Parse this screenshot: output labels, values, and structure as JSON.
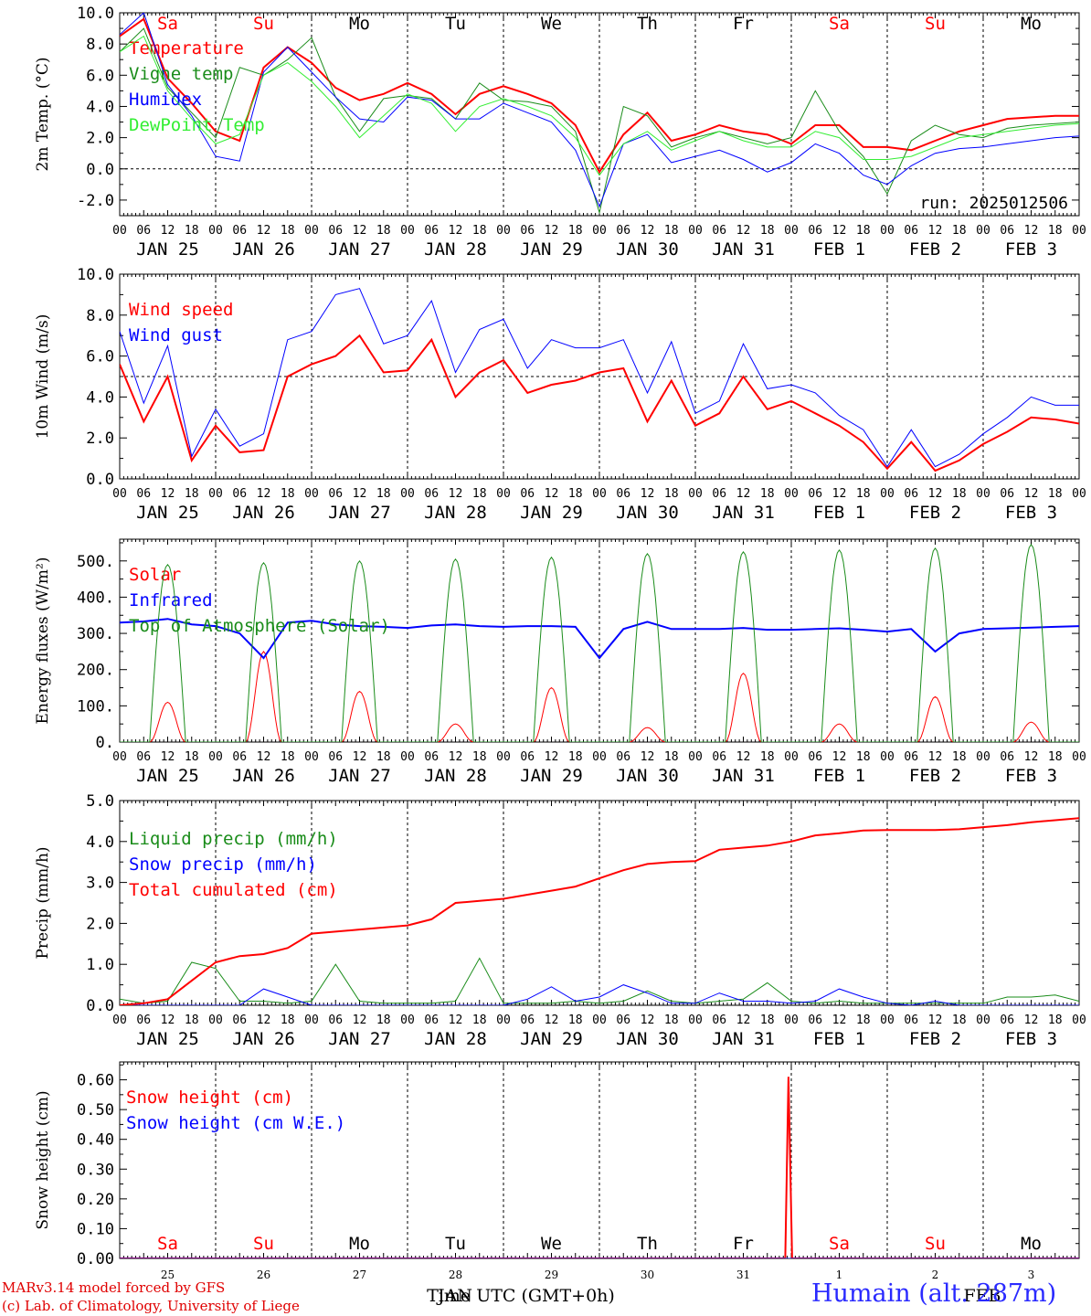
{
  "footer": {
    "model": "MARv3.14 model forced by GFS",
    "lab": "(c) Lab. of Climatology, University of Liege",
    "station": "Humain (alt. 287m)"
  },
  "colors": {
    "red": "#ff0000",
    "green": "#1a8c1a",
    "blue": "#0000ff",
    "lightgreen": "#33ee33",
    "axis": "#000000"
  },
  "chart_data": [
    {
      "type": "line",
      "ylabel": "2m Temp. (°C)",
      "ylim": [
        -3,
        10
      ],
      "yticks": [
        "-2.0",
        "0.0",
        "2.0",
        "4.0",
        "6.0",
        "8.0",
        "10.0"
      ],
      "ytick_values": [
        -2,
        0,
        2,
        4,
        6,
        8,
        10
      ],
      "hline": 0,
      "day_labels": [
        {
          "text": "Sa",
          "red": true
        },
        {
          "text": "Su",
          "red": true
        },
        {
          "text": "Mo",
          "red": false
        },
        {
          "text": "Tu",
          "red": false
        },
        {
          "text": "We",
          "red": false
        },
        {
          "text": "Th",
          "red": false
        },
        {
          "text": "Fr",
          "red": false
        },
        {
          "text": "Sa",
          "red": true
        },
        {
          "text": "Su",
          "red": true
        },
        {
          "text": "Mo",
          "red": false
        }
      ],
      "date_labels": [
        "JAN 25",
        "JAN 26",
        "JAN 27",
        "JAN 28",
        "JAN 29",
        "JAN 30",
        "JAN 31",
        "FEB  1",
        "FEB  2",
        "FEB  3"
      ],
      "hour_labels": [
        "00",
        "06",
        "12",
        "18"
      ],
      "annotation": "run: 2025012506",
      "x_hours": [
        0,
        6,
        12,
        18,
        24,
        30,
        36,
        42,
        48,
        54,
        60,
        66,
        72,
        78,
        84,
        90,
        96,
        102,
        108,
        114,
        120,
        126,
        132,
        138,
        144,
        150,
        156,
        162,
        168,
        174,
        180,
        186,
        192,
        198,
        204,
        210,
        216,
        222,
        228,
        234,
        240
      ],
      "series": [
        {
          "name": "Temperature",
          "color": "#ff0000",
          "width": 2,
          "values": [
            8.5,
            9.6,
            5.8,
            4.2,
            2.4,
            1.8,
            6.5,
            7.8,
            6.8,
            5.2,
            4.4,
            4.8,
            5.5,
            4.8,
            3.5,
            4.8,
            5.3,
            4.8,
            4.2,
            2.8,
            -0.2,
            2.2,
            3.6,
            1.8,
            2.2,
            2.8,
            2.4,
            2.2,
            1.6,
            2.8,
            2.8,
            1.4,
            1.4,
            1.2,
            1.8,
            2.4,
            2.8,
            3.2,
            3.3,
            3.4,
            3.4
          ]
        },
        {
          "name": "Vigne temp",
          "color": "#1a8c1a",
          "width": 1,
          "values": [
            7.5,
            9.0,
            5.2,
            3.6,
            2.0,
            6.5,
            6.0,
            7.0,
            8.4,
            4.6,
            2.4,
            4.5,
            4.7,
            4.5,
            3.2,
            5.5,
            4.4,
            4.3,
            4.0,
            2.4,
            -2.8,
            4.0,
            3.4,
            1.4,
            2.0,
            2.4,
            2.0,
            1.6,
            2.0,
            5.0,
            2.4,
            0.8,
            -1.6,
            1.8,
            2.8,
            2.2,
            2.0,
            2.6,
            2.8,
            2.9,
            3.0
          ]
        },
        {
          "name": "Humidex",
          "color": "#0000ff",
          "width": 1,
          "values": [
            8.6,
            10.0,
            5.4,
            3.4,
            0.8,
            0.5,
            6.2,
            7.8,
            6.2,
            4.6,
            3.2,
            3.0,
            4.6,
            4.4,
            3.2,
            3.2,
            4.2,
            3.6,
            3.0,
            1.2,
            -2.4,
            1.6,
            2.2,
            0.4,
            0.8,
            1.2,
            0.6,
            -0.2,
            0.4,
            1.6,
            1.0,
            -0.4,
            -1.0,
            0.2,
            1.0,
            1.3,
            1.4,
            1.6,
            1.8,
            2.0,
            2.1
          ]
        },
        {
          "name": "DewPoint Temp",
          "color": "#33ee33",
          "width": 1,
          "values": [
            7.5,
            8.5,
            5.0,
            3.2,
            1.6,
            2.2,
            6.0,
            6.8,
            5.6,
            4.0,
            2.0,
            3.4,
            4.8,
            4.2,
            2.4,
            4.0,
            4.5,
            4.0,
            3.4,
            2.0,
            -0.4,
            1.6,
            2.4,
            1.2,
            1.8,
            2.4,
            1.8,
            1.4,
            1.4,
            2.4,
            2.0,
            0.6,
            0.6,
            0.8,
            1.4,
            2.0,
            2.2,
            2.4,
            2.6,
            2.8,
            2.9
          ]
        }
      ]
    },
    {
      "type": "line",
      "ylabel": "10m Wind (m/s)",
      "ylim": [
        0,
        10
      ],
      "yticks": [
        "0.0",
        "2.0",
        "4.0",
        "6.0",
        "8.0",
        "10.0"
      ],
      "ytick_values": [
        0,
        2,
        4,
        6,
        8,
        10
      ],
      "hline": 5,
      "date_labels": [
        "JAN 25",
        "JAN 26",
        "JAN 27",
        "JAN 28",
        "JAN 29",
        "JAN 30",
        "JAN 31",
        "FEB  1",
        "FEB  2",
        "FEB  3"
      ],
      "hour_labels": [
        "00",
        "06",
        "12",
        "18"
      ],
      "x_hours": [
        0,
        6,
        12,
        18,
        24,
        30,
        36,
        42,
        48,
        54,
        60,
        66,
        72,
        78,
        84,
        90,
        96,
        102,
        108,
        114,
        120,
        126,
        132,
        138,
        144,
        150,
        156,
        162,
        168,
        174,
        180,
        186,
        192,
        198,
        204,
        210,
        216,
        222,
        228,
        234,
        240
      ],
      "series": [
        {
          "name": "Wind speed",
          "color": "#ff0000",
          "width": 2,
          "values": [
            5.6,
            2.8,
            5.0,
            0.9,
            2.6,
            1.3,
            1.4,
            5.0,
            5.6,
            6.0,
            7.0,
            5.2,
            5.3,
            6.8,
            4.0,
            5.2,
            5.8,
            4.2,
            4.6,
            4.8,
            5.2,
            5.4,
            2.8,
            4.8,
            2.6,
            3.2,
            5.0,
            3.4,
            3.8,
            3.2,
            2.6,
            1.8,
            0.5,
            1.8,
            0.4,
            0.9,
            1.7,
            2.3,
            3.0,
            2.9,
            2.7
          ]
        },
        {
          "name": "Wind gust",
          "color": "#0000ff",
          "width": 1,
          "values": [
            7.2,
            3.7,
            6.5,
            1.1,
            3.4,
            1.6,
            2.2,
            6.8,
            7.2,
            9.0,
            9.3,
            6.6,
            7.0,
            8.7,
            5.2,
            7.3,
            7.8,
            5.4,
            6.8,
            6.4,
            6.4,
            6.8,
            4.2,
            6.7,
            3.2,
            3.8,
            6.6,
            4.4,
            4.6,
            4.2,
            3.1,
            2.4,
            0.6,
            2.4,
            0.6,
            1.2,
            2.2,
            3.0,
            4.0,
            3.6,
            3.6
          ]
        }
      ]
    },
    {
      "type": "line",
      "ylabel": "Energy fluxes (W/m²)",
      "ylim": [
        0,
        560
      ],
      "yticks": [
        "0.",
        "100.",
        "200.",
        "300.",
        "400.",
        "500."
      ],
      "ytick_values": [
        0,
        100,
        200,
        300,
        400,
        500
      ],
      "date_labels": [
        "JAN 25",
        "JAN 26",
        "JAN 27",
        "JAN 28",
        "JAN 29",
        "JAN 30",
        "JAN 31",
        "FEB  1",
        "FEB  2",
        "FEB  3"
      ],
      "hour_labels": [
        "00",
        "06",
        "12",
        "18"
      ],
      "series": [
        {
          "name": "Solar",
          "color": "#ff0000",
          "width": 1,
          "peaks": [
            110,
            250,
            140,
            50,
            150,
            40,
            190,
            50,
            125,
            55
          ]
        },
        {
          "name": "Infrared",
          "color": "#0000ff",
          "width": 2,
          "x_hours": [
            0,
            6,
            12,
            18,
            24,
            30,
            36,
            42,
            48,
            54,
            60,
            66,
            72,
            78,
            84,
            90,
            96,
            102,
            108,
            114,
            120,
            126,
            132,
            138,
            144,
            150,
            156,
            162,
            168,
            174,
            180,
            186,
            192,
            198,
            204,
            210,
            216,
            222,
            228,
            234,
            240
          ],
          "values": [
            330,
            333,
            340,
            325,
            320,
            300,
            232,
            330,
            335,
            325,
            320,
            318,
            315,
            322,
            325,
            320,
            318,
            320,
            320,
            318,
            232,
            312,
            332,
            312,
            312,
            312,
            315,
            310,
            310,
            312,
            314,
            310,
            305,
            312,
            250,
            300,
            312,
            314,
            316,
            318,
            320
          ]
        },
        {
          "name": "Top of Atmosphere (Solar)",
          "color": "#1a8c1a",
          "width": 1,
          "peaks": [
            490,
            495,
            500,
            505,
            510,
            520,
            525,
            530,
            535,
            545
          ]
        }
      ]
    },
    {
      "type": "line",
      "ylabel": "Precip (mm/h)",
      "ylim": [
        0,
        5
      ],
      "yticks": [
        "0.0",
        "1.0",
        "2.0",
        "3.0",
        "4.0",
        "5.0"
      ],
      "ytick_values": [
        0,
        1,
        2,
        3,
        4,
        5
      ],
      "date_labels": [
        "JAN 25",
        "JAN 26",
        "JAN 27",
        "JAN 28",
        "JAN 29",
        "JAN 30",
        "JAN 31",
        "FEB  1",
        "FEB  2",
        "FEB  3"
      ],
      "hour_labels": [
        "00",
        "06",
        "12",
        "18"
      ],
      "x_hours": [
        0,
        6,
        12,
        18,
        24,
        30,
        36,
        42,
        48,
        54,
        60,
        66,
        72,
        78,
        84,
        90,
        96,
        102,
        108,
        114,
        120,
        126,
        132,
        138,
        144,
        150,
        156,
        162,
        168,
        174,
        180,
        186,
        192,
        198,
        204,
        210,
        216,
        222,
        228,
        234,
        240
      ],
      "series": [
        {
          "name": "Liquid precip (mm/h)",
          "color": "#1a8c1a",
          "width": 1,
          "values": [
            0.15,
            0.05,
            0.1,
            1.05,
            0.9,
            0.1,
            0.1,
            0.05,
            0.1,
            1.0,
            0.1,
            0.05,
            0.05,
            0.05,
            0.1,
            1.15,
            0.05,
            0.05,
            0.05,
            0.1,
            0.05,
            0.1,
            0.35,
            0.1,
            0.05,
            0.1,
            0.15,
            0.55,
            0.1,
            0.05,
            0.1,
            0.05,
            0.05,
            0.05,
            0.05,
            0.05,
            0.05,
            0.2,
            0.2,
            0.25,
            0.1
          ]
        },
        {
          "name": "Snow precip (mm/h)",
          "color": "#0000ff",
          "width": 1,
          "values": [
            0,
            0,
            0,
            0,
            0,
            0,
            0.4,
            0.2,
            0,
            0,
            0,
            0,
            0,
            0,
            0,
            0,
            0,
            0.15,
            0.45,
            0.1,
            0.2,
            0.5,
            0.3,
            0.05,
            0.05,
            0.3,
            0.1,
            0.1,
            0.05,
            0.1,
            0.4,
            0.2,
            0.05,
            0,
            0.1,
            0,
            0,
            0,
            0,
            0,
            0
          ]
        },
        {
          "name": "Total cumulated (cm)",
          "color": "#ff0000",
          "width": 2,
          "values": [
            0.0,
            0.05,
            0.15,
            0.6,
            1.05,
            1.2,
            1.25,
            1.4,
            1.75,
            1.8,
            1.85,
            1.9,
            1.95,
            2.1,
            2.5,
            2.55,
            2.6,
            2.7,
            2.8,
            2.9,
            3.1,
            3.3,
            3.45,
            3.5,
            3.52,
            3.8,
            3.85,
            3.9,
            4.0,
            4.15,
            4.2,
            4.27,
            4.28,
            4.28,
            4.28,
            4.3,
            4.35,
            4.4,
            4.47,
            4.52,
            4.57
          ]
        }
      ]
    },
    {
      "type": "line",
      "ylabel": "Snow height (cm)",
      "ylim": [
        0,
        0.66
      ],
      "yticks": [
        "0.00",
        "0.10",
        "0.20",
        "0.30",
        "0.40",
        "0.50",
        "0.60"
      ],
      "ytick_values": [
        0,
        0.1,
        0.2,
        0.3,
        0.4,
        0.5,
        0.6
      ],
      "day_labels": [
        {
          "text": "Sa",
          "red": true
        },
        {
          "text": "Su",
          "red": true
        },
        {
          "text": "Mo",
          "red": false
        },
        {
          "text": "Tu",
          "red": false
        },
        {
          "text": "We",
          "red": false
        },
        {
          "text": "Th",
          "red": false
        },
        {
          "text": "Fr",
          "red": false
        },
        {
          "text": "Sa",
          "red": true
        },
        {
          "text": "Su",
          "red": true
        },
        {
          "text": "Mo",
          "red": false
        }
      ],
      "day_numbers": [
        "25",
        "26",
        "27",
        "28",
        "29",
        "30",
        "31",
        "1",
        "2",
        "3"
      ],
      "xlabel": "Time UTC (GMT+0h)",
      "month_label_jan": "JAN",
      "month_label_feb": "FEB",
      "series": [
        {
          "name": "Snow height (cm)",
          "color": "#ff0000",
          "width": 2,
          "x_hours": [
            0,
            166.5,
            167.3,
            168.2,
            240
          ],
          "values": [
            0,
            0,
            0.61,
            0,
            0
          ]
        },
        {
          "name": "Snow height (cm W.E.)",
          "color": "#0000ff",
          "width": 1,
          "x_hours": [
            0,
            240
          ],
          "values": [
            0,
            0
          ]
        }
      ]
    }
  ]
}
